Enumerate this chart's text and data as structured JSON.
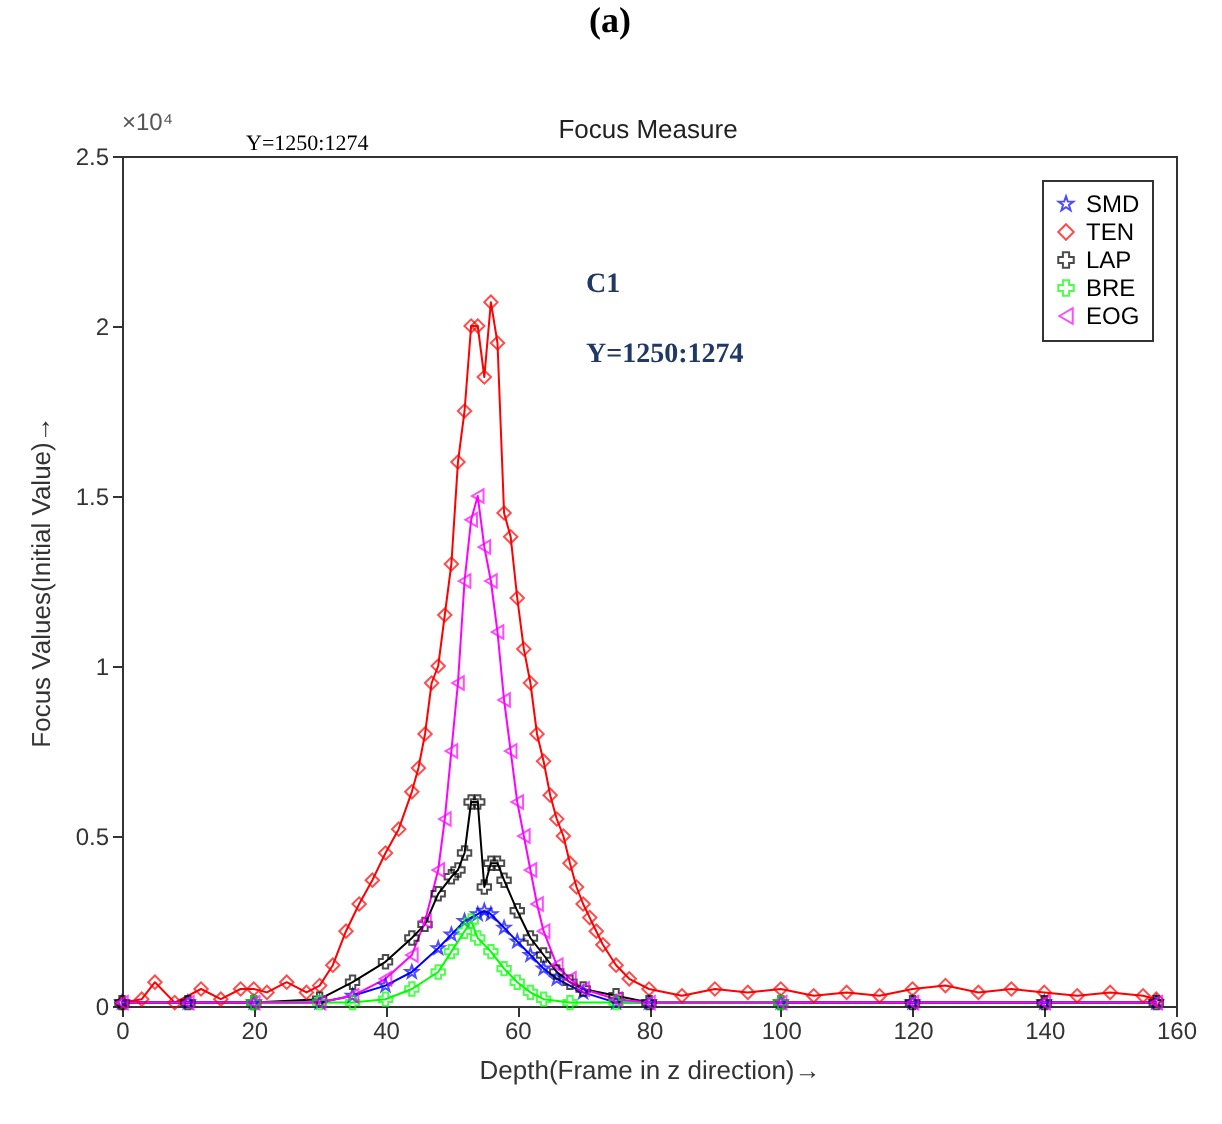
{
  "chart_data": {
    "type": "line",
    "title": "Focus Measure",
    "xlabel": "Depth(Frame in z direction)→",
    "ylabel": "Focus Values(Initial Value)→",
    "annotations": [
      "(a)",
      "×10⁴",
      "Y=1250:1274",
      "C1",
      "Y=1250:1274"
    ],
    "xlim": [
      0,
      160
    ],
    "xticks": [
      0,
      20,
      40,
      60,
      80,
      100,
      120,
      140,
      160
    ],
    "ylim": [
      0,
      2.5
    ],
    "yticks": [
      0,
      0.5,
      1,
      1.5,
      2,
      2.5
    ],
    "grid": false,
    "legend": "top right",
    "line_style": "solid",
    "series": [
      {
        "name": "SMD",
        "color": "#0000ff",
        "marker": "star",
        "x": [
          0,
          10,
          20,
          30,
          35,
          40,
          44,
          48,
          50,
          52,
          54,
          55,
          56,
          58,
          60,
          62,
          64,
          66,
          70,
          75,
          80,
          100,
          120,
          140,
          157
        ],
        "values": [
          0.01,
          0.01,
          0.01,
          0.01,
          0.03,
          0.06,
          0.1,
          0.17,
          0.21,
          0.25,
          0.27,
          0.28,
          0.27,
          0.23,
          0.19,
          0.15,
          0.11,
          0.08,
          0.04,
          0.01,
          0.01,
          0.01,
          0.01,
          0.01,
          0.01
        ]
      },
      {
        "name": "TEN",
        "color": "#ff0000",
        "marker": "diamond",
        "x": [
          0,
          3,
          5,
          8,
          12,
          15,
          18,
          20,
          22,
          25,
          28,
          30,
          32,
          34,
          36,
          38,
          40,
          42,
          44,
          45,
          46,
          47,
          48,
          49,
          50,
          51,
          52,
          53,
          54,
          55,
          56,
          57,
          58,
          59,
          60,
          61,
          62,
          63,
          64,
          65,
          66,
          67,
          68,
          69,
          70,
          71,
          72,
          73,
          75,
          77,
          80,
          85,
          90,
          95,
          100,
          105,
          110,
          115,
          120,
          125,
          130,
          135,
          140,
          145,
          150,
          155,
          157
        ],
        "values": [
          0.01,
          0.02,
          0.07,
          0.01,
          0.05,
          0.02,
          0.05,
          0.05,
          0.04,
          0.07,
          0.04,
          0.06,
          0.12,
          0.22,
          0.3,
          0.37,
          0.45,
          0.52,
          0.63,
          0.7,
          0.8,
          0.95,
          1.0,
          1.15,
          1.3,
          1.6,
          1.75,
          2.0,
          2.0,
          1.85,
          2.07,
          1.95,
          1.45,
          1.38,
          1.2,
          1.05,
          0.95,
          0.8,
          0.72,
          0.62,
          0.55,
          0.5,
          0.42,
          0.35,
          0.3,
          0.26,
          0.22,
          0.18,
          0.12,
          0.08,
          0.05,
          0.03,
          0.05,
          0.04,
          0.05,
          0.03,
          0.04,
          0.03,
          0.05,
          0.06,
          0.04,
          0.05,
          0.04,
          0.03,
          0.04,
          0.03,
          0.02
        ]
      },
      {
        "name": "LAP",
        "color": "#000000",
        "marker": "cross",
        "x": [
          0,
          10,
          20,
          30,
          35,
          40,
          44,
          46,
          48,
          50,
          51,
          52,
          53,
          54,
          55,
          56,
          57,
          58,
          60,
          62,
          64,
          66,
          68,
          70,
          75,
          80,
          100,
          120,
          140,
          157
        ],
        "values": [
          0.01,
          0.01,
          0.01,
          0.02,
          0.07,
          0.13,
          0.2,
          0.24,
          0.33,
          0.38,
          0.4,
          0.45,
          0.6,
          0.6,
          0.35,
          0.42,
          0.42,
          0.37,
          0.28,
          0.2,
          0.15,
          0.1,
          0.07,
          0.05,
          0.03,
          0.01,
          0.01,
          0.01,
          0.01,
          0.01
        ]
      },
      {
        "name": "BRE",
        "color": "#00ff00",
        "marker": "cross",
        "x": [
          20,
          30,
          35,
          40,
          44,
          48,
          50,
          52,
          53,
          54,
          56,
          58,
          60,
          62,
          64,
          68,
          75,
          100
        ],
        "values": [
          0.01,
          0.01,
          0.01,
          0.02,
          0.05,
          0.1,
          0.16,
          0.22,
          0.25,
          0.2,
          0.16,
          0.11,
          0.07,
          0.04,
          0.02,
          0.01,
          0.01,
          0.01
        ]
      },
      {
        "name": "EOG",
        "color": "#ff00ff",
        "marker": "triangle",
        "x": [
          0,
          10,
          20,
          30,
          35,
          40,
          44,
          46,
          48,
          49,
          50,
          51,
          52,
          53,
          54,
          55,
          56,
          57,
          58,
          59,
          60,
          61,
          62,
          63,
          64,
          66,
          68,
          70,
          75,
          80,
          100,
          120,
          140,
          157
        ],
        "values": [
          0.01,
          0.01,
          0.01,
          0.01,
          0.03,
          0.08,
          0.15,
          0.25,
          0.4,
          0.55,
          0.75,
          0.95,
          1.25,
          1.43,
          1.5,
          1.35,
          1.25,
          1.1,
          0.9,
          0.75,
          0.6,
          0.5,
          0.4,
          0.3,
          0.22,
          0.12,
          0.08,
          0.05,
          0.02,
          0.01,
          0.01,
          0.01,
          0.01,
          0.01
        ]
      }
    ]
  }
}
